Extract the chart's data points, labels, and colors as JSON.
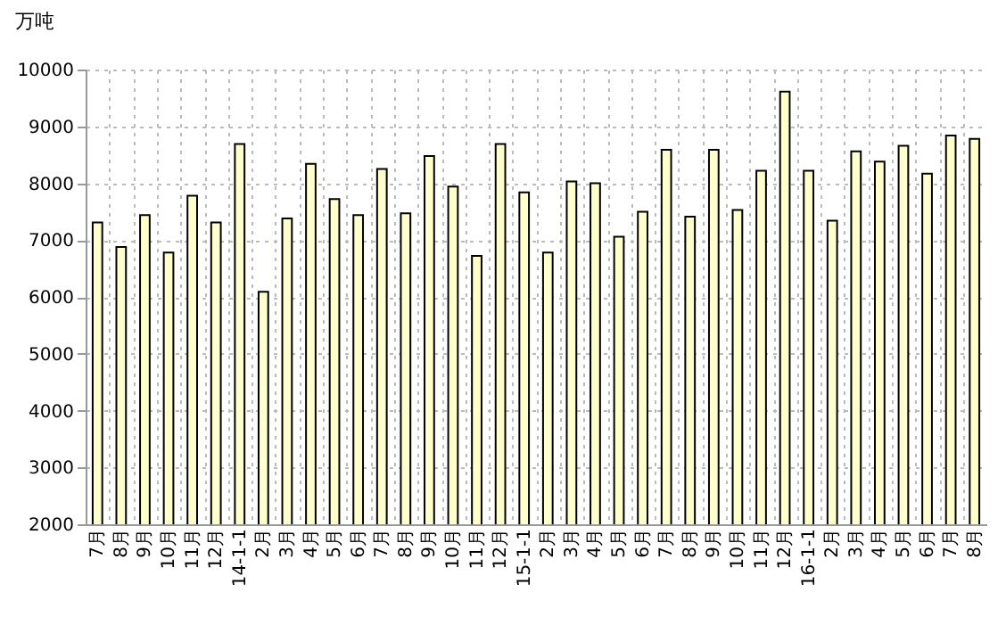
{
  "chart_data": {
    "type": "bar",
    "ylabel": "万吨",
    "categories": [
      "7月",
      "8月",
      "9月",
      "10月",
      "11月",
      "12月",
      "14-1-1",
      "2月",
      "3月",
      "4月",
      "5月",
      "6月",
      "7月",
      "8月",
      "9月",
      "10月",
      "11月",
      "12月",
      "15-1-1",
      "2月",
      "3月",
      "4月",
      "5月",
      "6月",
      "7月",
      "8月",
      "9月",
      "10月",
      "11月",
      "12月",
      "16-1-1",
      "2月",
      "3月",
      "4月",
      "5月",
      "6月",
      "7月",
      "8月"
    ],
    "values": [
      7310,
      6880,
      7440,
      6780,
      7780,
      7310,
      8690,
      6090,
      7380,
      8340,
      7720,
      7440,
      8250,
      7470,
      8480,
      7940,
      6720,
      8690,
      7840,
      6780,
      8030,
      8000,
      7060,
      7500,
      8590,
      7410,
      8590,
      7530,
      8220,
      9610,
      8220,
      7340,
      8560,
      8380,
      8660,
      8170,
      8840,
      8780
    ],
    "color": "#ffffcc",
    "ylim": [
      2000,
      10000
    ],
    "yticks": [
      2000,
      3000,
      4000,
      5000,
      6000,
      7000,
      8000,
      9000,
      10000
    ],
    "grid": true
  }
}
